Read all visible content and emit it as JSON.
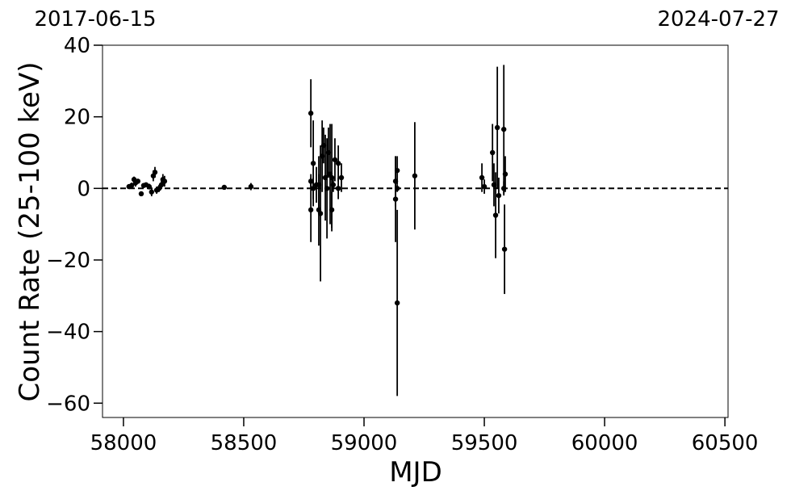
{
  "chart_data": {
    "type": "scatter",
    "xlabel": "MJD",
    "ylabel": "Count Rate (25-100 keV)",
    "top_labels": [
      "2017-06-15",
      "2024-07-27"
    ],
    "color": "#000000",
    "x": [
      58023,
      58034,
      58044,
      58050,
      58060,
      58074,
      58084,
      58094,
      58107,
      58117,
      58124,
      58131,
      58138,
      58148,
      58158,
      58164,
      58171,
      58419,
      58530,
      58779,
      58779,
      58779,
      58789,
      58789,
      58802,
      58812,
      58812,
      58819,
      58826,
      58832,
      58839,
      58846,
      58852,
      58859,
      58866,
      58866,
      58872,
      58879,
      58893,
      58893,
      58906,
      59131,
      59131,
      59138,
      59138,
      59138,
      59211,
      59490,
      59500,
      59534,
      59540,
      59547,
      59554,
      59560,
      59581,
      59584,
      59587,
      59581
    ],
    "values": [
      0.5,
      0.8,
      2.5,
      1.5,
      2,
      -1.5,
      0.8,
      1,
      0.5,
      -1,
      3.5,
      4.5,
      -0.5,
      0,
      1,
      2.5,
      2,
      0.3,
      0.5,
      21,
      -6,
      2,
      7,
      0,
      1,
      -6,
      1,
      -7,
      9,
      12,
      3,
      0,
      10,
      4,
      -6,
      3,
      1,
      8,
      7,
      0,
      3,
      -3,
      2,
      -32,
      5,
      0,
      3.5,
      3,
      0.5,
      10,
      1,
      -7.5,
      17,
      -2,
      16.5,
      -17,
      4,
      0
    ],
    "errors": [
      0.5,
      0.8,
      0.8,
      1,
      0.7,
      0.5,
      0.6,
      0.5,
      0.8,
      1.2,
      1.5,
      1.5,
      1,
      1,
      1.2,
      1.5,
      1.5,
      0.5,
      1,
      9.5,
      9,
      2,
      12,
      3,
      5,
      10,
      8,
      19,
      10,
      5,
      12,
      14,
      7,
      14,
      5,
      15,
      2,
      6,
      5,
      3,
      4,
      12,
      7,
      26,
      4,
      1,
      15,
      4,
      2,
      8,
      6,
      12,
      17,
      5,
      18,
      12.5,
      5,
      2
    ],
    "reference_line": 0,
    "xlim": [
      57913,
      60513
    ],
    "ylim": [
      -64,
      40
    ],
    "xticks": [
      58000,
      58500,
      59000,
      59500,
      60000,
      60500
    ],
    "yticks": [
      {
        "value": -60,
        "label": "−60"
      },
      {
        "value": -40,
        "label": "−40"
      },
      {
        "value": -20,
        "label": "−20"
      },
      0,
      20,
      40
    ]
  }
}
